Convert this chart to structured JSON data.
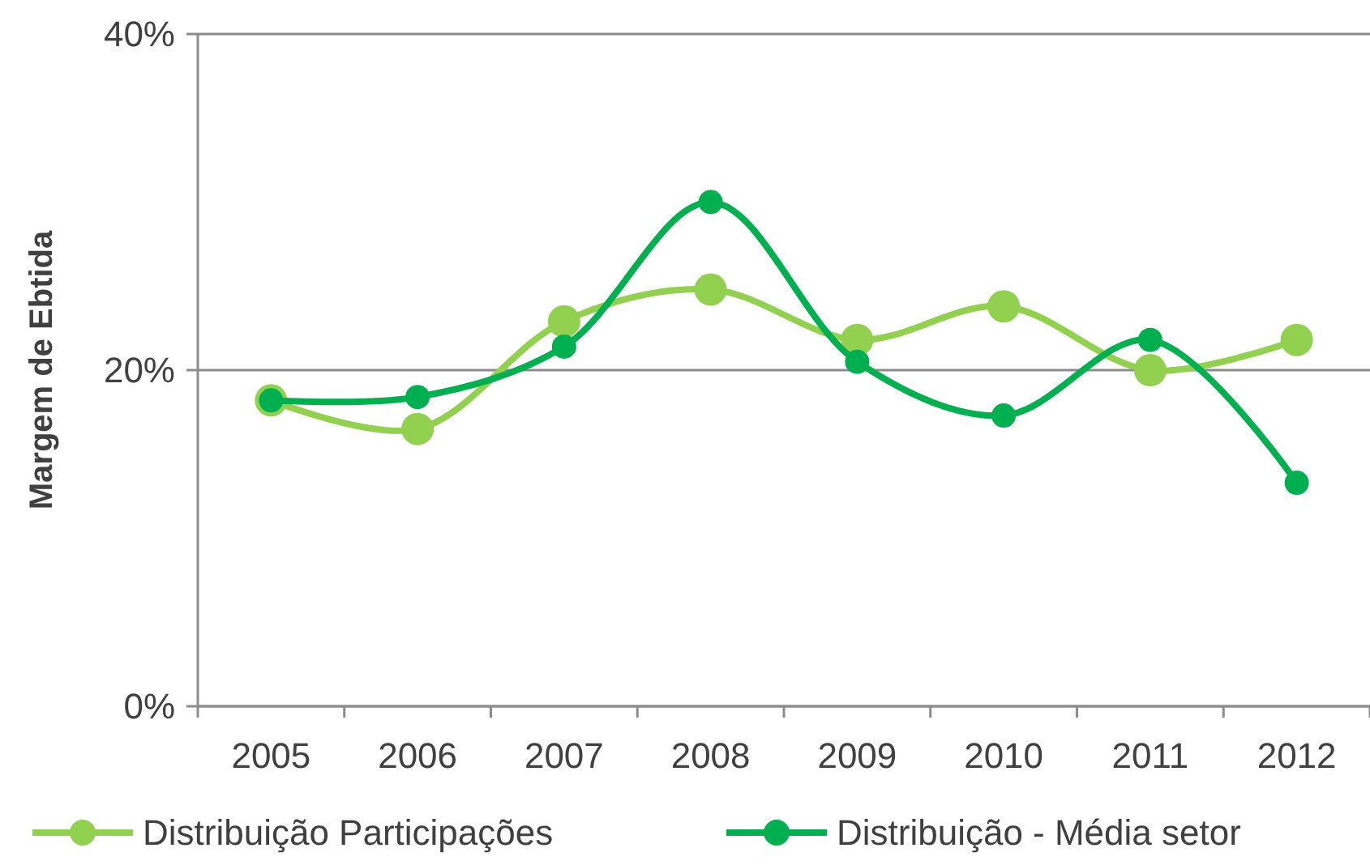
{
  "chart_data": {
    "type": "line",
    "ylabel": "Margem de Ebtida",
    "categories": [
      "2005",
      "2006",
      "2007",
      "2008",
      "2009",
      "2010",
      "2011",
      "2012"
    ],
    "series": [
      {
        "name": "Distribuição Participações",
        "color": "#92d050",
        "values": [
          18.2,
          16.5,
          22.9,
          24.8,
          21.8,
          23.8,
          20.0,
          21.8
        ]
      },
      {
        "name": "Distribuição - Média setor",
        "color": "#00b050",
        "values": [
          18.2,
          18.4,
          21.4,
          30.0,
          20.5,
          17.3,
          21.8,
          13.3
        ]
      }
    ],
    "ylim": [
      0,
      40
    ],
    "yticks": [
      {
        "value": 0,
        "label": "0%"
      },
      {
        "value": 20,
        "label": "20%"
      },
      {
        "value": 40,
        "label": "40%"
      }
    ],
    "grid": "y",
    "legend": "bottom",
    "marker": "circle",
    "line_style": "solid"
  }
}
